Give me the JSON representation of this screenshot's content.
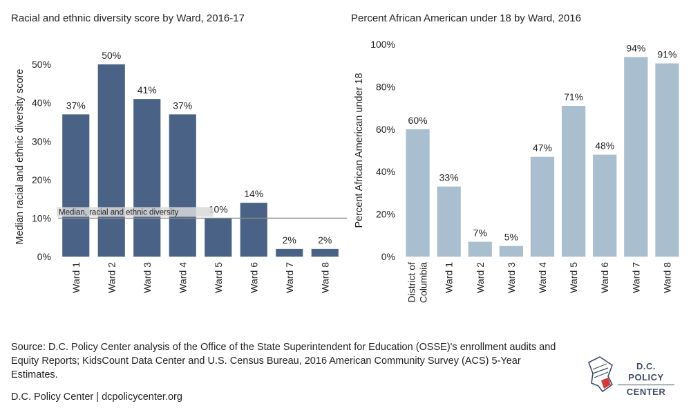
{
  "left_title": "Racial and ethnic diversity score by Ward, 2016-17",
  "right_title": "Percent African American under 18 by Ward, 2016",
  "source": "Source: D.C. Policy Center analysis of the Office of the State Superintendent for Education (OSSE)'s enrollment audits and Equity Reports; KidsCount Data Center and U.S. Census Bureau, 2016 American Community Survey (ACS) 5-Year Estimates.",
  "credit": "D.C. Policy Center | dcpolicycenter.org",
  "logo": {
    "line1": "D.C. POLICY",
    "line2": "CENTER",
    "icon": "dc-map-icon"
  },
  "colors": {
    "left_bar": "#4a6285",
    "right_bar": "#a9bfd0",
    "median_line": "#8a8a8a"
  },
  "chart_data": [
    {
      "type": "bar",
      "title": "Racial and ethnic diversity score by Ward, 2016-17",
      "ylabel": "Median racial and ethnic diversity score",
      "categories": [
        "Ward 1",
        "Ward 2",
        "Ward 3",
        "Ward 4",
        "Ward 5",
        "Ward 6",
        "Ward 7",
        "Ward 8"
      ],
      "values": [
        37,
        50,
        41,
        37,
        10,
        14,
        2,
        2
      ],
      "data_labels": [
        "37%",
        "50%",
        "41%",
        "37%",
        "10%",
        "14%",
        "2%",
        "2%"
      ],
      "yticks": [
        "0%",
        "10%",
        "20%",
        "30%",
        "40%",
        "50%"
      ],
      "ylim": [
        0,
        52
      ],
      "reference_line": {
        "value": 10,
        "label": "Median, racial and ethnic diversity"
      },
      "grid": false
    },
    {
      "type": "bar",
      "title": "Percent African American under 18 by Ward, 2016",
      "ylabel": "Percent African American under 18",
      "categories": [
        "District of Columbia",
        "Ward 1",
        "Ward 2",
        "Ward 3",
        "Ward 4",
        "Ward 5",
        "Ward 6",
        "Ward 7",
        "Ward 8"
      ],
      "values": [
        60,
        33,
        7,
        5,
        47,
        71,
        48,
        94,
        91
      ],
      "data_labels": [
        "60%",
        "33%",
        "7%",
        "5%",
        "47%",
        "71%",
        "48%",
        "94%",
        "91%"
      ],
      "yticks": [
        "0%",
        "20%",
        "40%",
        "60%",
        "80%",
        "100%"
      ],
      "ylim": [
        0,
        100
      ],
      "grid": false
    }
  ]
}
